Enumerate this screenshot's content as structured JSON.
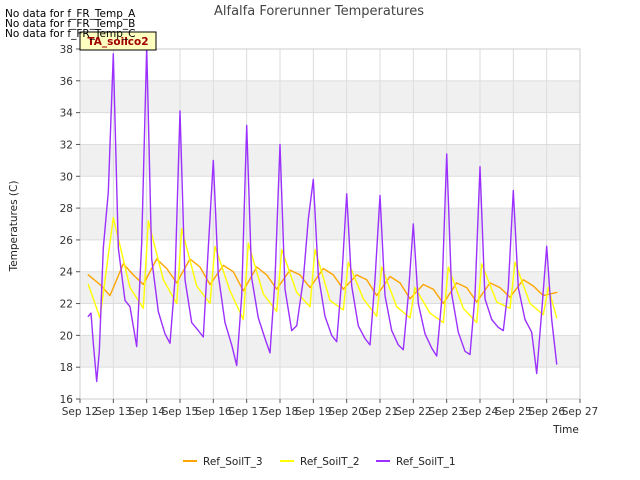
{
  "no_data_messages": [
    "No data for f_FR_Temp_A",
    "No data for f_FR_Temp_B",
    "No data for f_FR_Temp_C"
  ],
  "annotation_box": "TA_soilco2",
  "colors": {
    "Ref_SoilT_3": "#FFA500",
    "Ref_SoilT_2": "#FFFF00",
    "Ref_SoilT_1": "#9B30FF",
    "band": "#F0F0F0",
    "annotation_bg": "#FFFFC0",
    "annotation_text": "#A00000"
  },
  "chart_data": {
    "type": "line",
    "title": "Alfalfa Forerunner Temperatures",
    "xlabel": "Time",
    "ylabel": "Temperatures (C)",
    "xlim": [
      12,
      27
    ],
    "ylim": [
      16,
      38
    ],
    "x_ticks": [
      12,
      13,
      14,
      15,
      16,
      17,
      18,
      19,
      20,
      21,
      22,
      23,
      24,
      25,
      26,
      27
    ],
    "x_tick_labels": [
      "Sep 12",
      "Sep 13",
      "Sep 14",
      "Sep 15",
      "Sep 16",
      "Sep 17",
      "Sep 18",
      "Sep 19",
      "Sep 20",
      "Sep 21",
      "Sep 22",
      "Sep 23",
      "Sep 24",
      "Sep 25",
      "Sep 26",
      "Sep 27"
    ],
    "y_ticks": [
      16,
      18,
      20,
      22,
      24,
      26,
      28,
      30,
      32,
      34,
      36,
      38
    ],
    "legend_position": "bottom",
    "series": [
      {
        "name": "Ref_SoilT_3",
        "color": "#FFA500",
        "x": [
          12.25,
          12.6,
          12.9,
          13.3,
          13.6,
          13.9,
          14.3,
          14.6,
          14.9,
          15.3,
          15.6,
          15.9,
          16.3,
          16.6,
          16.9,
          17.3,
          17.6,
          17.9,
          18.3,
          18.6,
          18.9,
          19.3,
          19.6,
          19.9,
          20.3,
          20.6,
          20.9,
          21.3,
          21.6,
          21.9,
          22.3,
          22.6,
          22.9,
          23.3,
          23.6,
          23.9,
          24.3,
          24.6,
          24.9,
          25.3,
          25.6,
          25.9,
          26.3
        ],
        "y": [
          23.8,
          23.2,
          22.5,
          24.5,
          23.8,
          23.2,
          24.8,
          24.2,
          23.3,
          24.8,
          24.3,
          23.2,
          24.4,
          24.0,
          22.8,
          24.3,
          23.8,
          22.9,
          24.1,
          23.8,
          23.0,
          24.2,
          23.8,
          22.9,
          23.8,
          23.5,
          22.5,
          23.7,
          23.3,
          22.3,
          23.2,
          22.9,
          22.0,
          23.3,
          23.0,
          22.1,
          23.3,
          23.0,
          22.4,
          23.5,
          23.1,
          22.5,
          22.7
        ]
      },
      {
        "name": "Ref_SoilT_2",
        "color": "#FFFF00",
        "x": [
          12.25,
          12.6,
          13.0,
          13.5,
          13.9,
          14.05,
          14.5,
          14.9,
          15.05,
          15.5,
          15.9,
          16.05,
          16.5,
          16.9,
          17.05,
          17.5,
          17.9,
          18.05,
          18.5,
          18.9,
          19.05,
          19.5,
          19.9,
          20.05,
          20.5,
          20.9,
          21.05,
          21.5,
          21.9,
          22.05,
          22.5,
          22.9,
          23.05,
          23.5,
          23.9,
          24.05,
          24.5,
          24.9,
          25.05,
          25.5,
          25.9,
          26.05,
          26.3
        ],
        "y": [
          23.2,
          21.1,
          27.4,
          23.0,
          21.7,
          27.2,
          23.5,
          22.0,
          26.7,
          23.1,
          22.0,
          25.6,
          22.8,
          21.0,
          25.8,
          22.6,
          21.5,
          25.4,
          22.7,
          21.8,
          25.4,
          22.2,
          21.6,
          24.6,
          22.3,
          21.2,
          24.3,
          21.8,
          21.1,
          23.0,
          21.4,
          20.8,
          24.3,
          21.7,
          20.8,
          24.5,
          22.1,
          21.7,
          24.6,
          22.0,
          21.3,
          23.0,
          21.1
        ]
      },
      {
        "name": "Ref_SoilT_1",
        "color": "#9B30FF",
        "x": [
          12.25,
          12.33,
          12.4,
          12.5,
          12.58,
          12.7,
          12.85,
          13.0,
          13.15,
          13.35,
          13.5,
          13.7,
          13.85,
          14.0,
          14.15,
          14.35,
          14.55,
          14.7,
          14.85,
          15.0,
          15.15,
          15.35,
          15.55,
          15.7,
          15.85,
          16.0,
          16.15,
          16.35,
          16.55,
          16.7,
          16.85,
          17.0,
          17.15,
          17.35,
          17.55,
          17.7,
          17.85,
          18.0,
          18.15,
          18.35,
          18.5,
          18.7,
          18.85,
          19.0,
          19.15,
          19.35,
          19.55,
          19.7,
          19.85,
          20.0,
          20.15,
          20.35,
          20.55,
          20.7,
          20.85,
          21.0,
          21.15,
          21.35,
          21.55,
          21.7,
          21.85,
          22.0,
          22.15,
          22.35,
          22.55,
          22.7,
          22.85,
          23.0,
          23.15,
          23.35,
          23.55,
          23.7,
          23.85,
          24.0,
          24.15,
          24.35,
          24.55,
          24.7,
          24.85,
          25.0,
          25.15,
          25.35,
          25.55,
          25.7,
          25.85,
          26.0,
          26.15,
          26.3
        ],
        "y": [
          21.2,
          21.4,
          19.5,
          17.1,
          19.0,
          25.5,
          29.0,
          37.7,
          25.5,
          22.2,
          21.8,
          19.3,
          25.8,
          38.1,
          24.8,
          21.5,
          20.1,
          19.5,
          23.5,
          34.1,
          23.5,
          20.8,
          20.3,
          19.9,
          25.5,
          31.0,
          23.8,
          20.8,
          19.4,
          18.1,
          22.5,
          33.2,
          23.6,
          21.1,
          19.8,
          18.9,
          23.5,
          32.0,
          22.9,
          20.3,
          20.6,
          23.5,
          27.3,
          29.8,
          23.8,
          21.2,
          20.0,
          19.6,
          23.5,
          28.9,
          23.1,
          20.6,
          19.8,
          19.4,
          23.5,
          28.8,
          22.5,
          20.3,
          19.4,
          19.1,
          22.5,
          27.0,
          22.0,
          20.1,
          19.2,
          18.7,
          22.2,
          31.4,
          22.6,
          20.2,
          19.0,
          18.8,
          22.5,
          30.6,
          22.3,
          21.0,
          20.5,
          20.3,
          23.0,
          29.1,
          23.0,
          21.0,
          20.2,
          17.6,
          21.5,
          25.6,
          21.0,
          18.2
        ]
      }
    ]
  }
}
